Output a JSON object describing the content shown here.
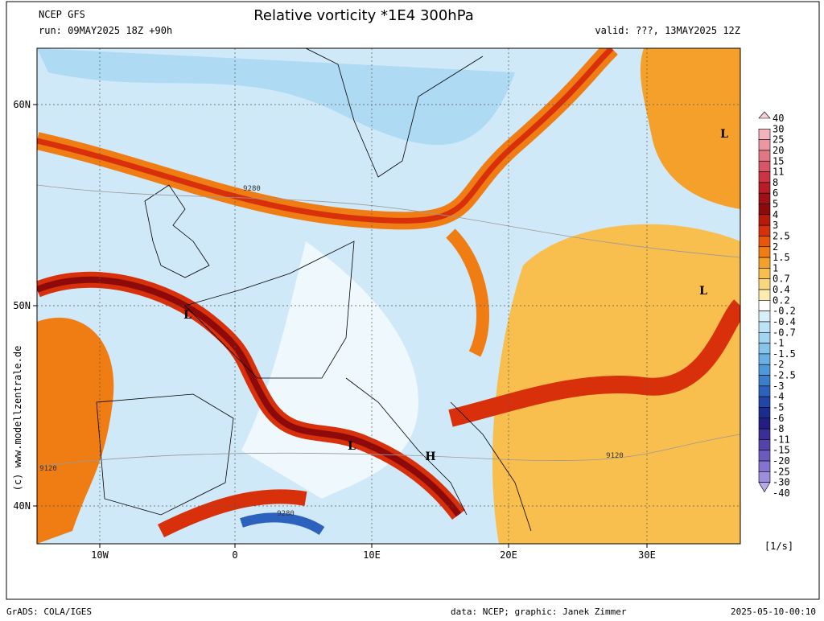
{
  "header": {
    "model": "NCEP GFS",
    "title": "Relative vorticity *1E4 300hPa",
    "run": "run: 09MAY2025 18Z +90h",
    "valid": "valid: ???, 13MAY2025 12Z"
  },
  "axes": {
    "lon_ticks": [
      "10W",
      "0",
      "10E",
      "20E",
      "30E"
    ],
    "lat_ticks": [
      "60N",
      "50N",
      "40N"
    ]
  },
  "colorbar": {
    "unit": "[1/s]",
    "levels": [
      "40",
      "30",
      "25",
      "20",
      "15",
      "11",
      "8",
      "6",
      "5",
      "4",
      "3",
      "2.5",
      "2",
      "1.5",
      "1",
      "0.7",
      "0.4",
      "0.2",
      "-0.2",
      "-0.4",
      "-0.7",
      "-1",
      "-1.5",
      "-2",
      "-2.5",
      "-3",
      "-4",
      "-5",
      "-6",
      "-8",
      "-11",
      "-15",
      "-20",
      "-25",
      "-30",
      "-40"
    ],
    "colors": [
      "#f7d0d6",
      "#f2b3bd",
      "#ec96a2",
      "#e27683",
      "#d85565",
      "#cc3444",
      "#b81c26",
      "#a00f14",
      "#8c0a0a",
      "#b81a0a",
      "#d8300a",
      "#e8560c",
      "#f07c14",
      "#f5a02a",
      "#f8be4e",
      "#fad77e",
      "#fcecb0",
      "#ffffff",
      "#d8effa",
      "#bde3f6",
      "#a2d5f1",
      "#86c4ec",
      "#6ab0e4",
      "#4f98da",
      "#3a7ecd",
      "#2c62bd",
      "#2246a8",
      "#1a2c90",
      "#231e86",
      "#3a2f98",
      "#5443ac",
      "#6c5bbf",
      "#8573cf",
      "#9d8edd",
      "#b7aaea"
    ]
  },
  "contour_labels": [
    "9280",
    "9120",
    "9280",
    "9120"
  ],
  "pressure_centers": [
    "L",
    "L",
    "L",
    "L",
    "H"
  ],
  "side_credit": "(c) www.modellzentrale.de",
  "footer": {
    "software": "GrADS: COLA/IGES",
    "credit": "data: NCEP; graphic: Janek Zimmer",
    "timestamp": "2025-05-10-00:10"
  }
}
